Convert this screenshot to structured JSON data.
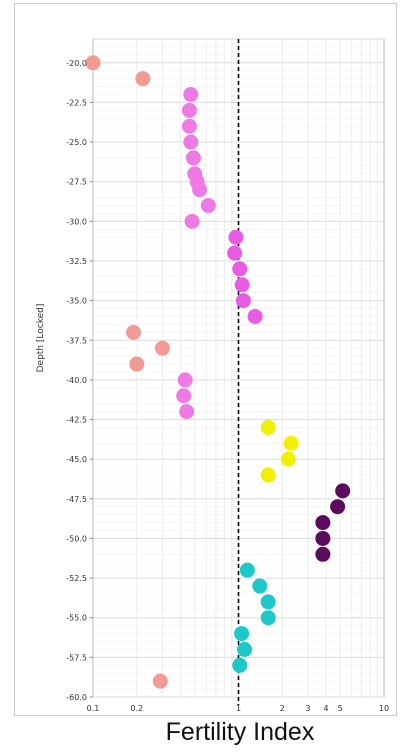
{
  "chart_data": {
    "type": "scatter",
    "xlabel": "Fertility Index",
    "ylabel": "Depth [Locked]",
    "xscale": "log",
    "xlim": [
      0.1,
      10
    ],
    "ylim": [
      -60.0,
      -18.5
    ],
    "x_ticks": [
      "0.1",
      "0.2",
      "1",
      "2",
      "3",
      "4",
      "5",
      "10"
    ],
    "x_tick_values": [
      0.1,
      0.2,
      1,
      2,
      3,
      4,
      5,
      10
    ],
    "y_ticks": [
      "-20.0",
      "-22.5",
      "-25.0",
      "-27.5",
      "-30.0",
      "-32.5",
      "-35.0",
      "-37.5",
      "-40.0",
      "-42.5",
      "-45.0",
      "-47.5",
      "-50.0",
      "-52.5",
      "-55.0",
      "-57.5",
      "-60.0"
    ],
    "y_tick_values": [
      -20,
      -22.5,
      -25,
      -27.5,
      -30,
      -32.5,
      -35,
      -37.5,
      -40,
      -42.5,
      -45,
      -47.5,
      -50,
      -52.5,
      -55,
      -57.5,
      -60
    ],
    "reference_line": {
      "x": 1,
      "style": "dashed",
      "color": "#000000"
    },
    "grid": true,
    "series": [
      {
        "color": "#f29b94",
        "points": [
          [
            0.1,
            -20.0
          ],
          [
            0.22,
            -21.0
          ],
          [
            0.19,
            -37.0
          ],
          [
            0.3,
            -38.0
          ],
          [
            0.2,
            -39.0
          ],
          [
            0.29,
            -59.0
          ]
        ]
      },
      {
        "color": "#ef7ae6",
        "points": [
          [
            0.47,
            -22.0
          ],
          [
            0.46,
            -23.0
          ],
          [
            0.46,
            -24.0
          ],
          [
            0.47,
            -25.0
          ],
          [
            0.49,
            -26.0
          ],
          [
            0.5,
            -27.0
          ],
          [
            0.52,
            -27.5
          ],
          [
            0.54,
            -28.0
          ],
          [
            0.62,
            -29.0
          ],
          [
            0.48,
            -30.0
          ],
          [
            0.43,
            -40.0
          ],
          [
            0.42,
            -41.0
          ],
          [
            0.44,
            -42.0
          ]
        ]
      },
      {
        "color": "#e95be4",
        "points": [
          [
            0.96,
            -31.0
          ],
          [
            0.94,
            -32.0
          ],
          [
            1.02,
            -33.0
          ],
          [
            1.06,
            -34.0
          ],
          [
            1.08,
            -35.0
          ],
          [
            1.3,
            -36.0
          ]
        ]
      },
      {
        "color": "#f2ef00",
        "points": [
          [
            1.6,
            -43.0
          ],
          [
            2.3,
            -44.0
          ],
          [
            2.2,
            -45.0
          ],
          [
            1.6,
            -46.0
          ]
        ]
      },
      {
        "color": "#5b0a5e",
        "points": [
          [
            5.2,
            -47.0
          ],
          [
            4.8,
            -48.0
          ],
          [
            3.8,
            -49.0
          ],
          [
            3.8,
            -50.0
          ],
          [
            3.8,
            -51.0
          ]
        ]
      },
      {
        "color": "#1cc8c8",
        "points": [
          [
            1.15,
            -52.0
          ],
          [
            1.4,
            -53.0
          ],
          [
            1.6,
            -54.0
          ],
          [
            1.6,
            -55.0
          ],
          [
            1.05,
            -56.0
          ],
          [
            1.1,
            -57.0
          ],
          [
            1.02,
            -58.0
          ]
        ]
      }
    ]
  }
}
